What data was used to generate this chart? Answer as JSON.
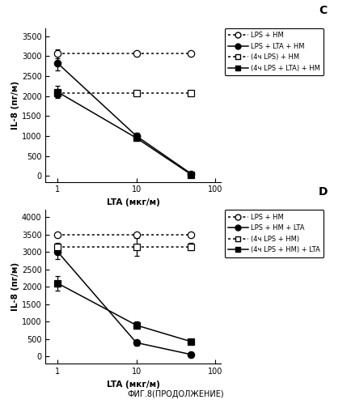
{
  "panel_C": {
    "title": "C",
    "xlabel": "LTA (мкг/м)",
    "ylabel": "IL-8 (пг/м)",
    "xlim": [
      0.7,
      120
    ],
    "ylim": [
      -150,
      3700
    ],
    "yticks": [
      0,
      500,
      1000,
      1500,
      2000,
      2500,
      3000,
      3500
    ],
    "xticks": [
      1,
      10,
      100
    ],
    "series": [
      {
        "label": "LPS + HM",
        "x": [
          1,
          10,
          50
        ],
        "y": [
          3060,
          3060,
          3060
        ],
        "yerr": [
          120,
          0,
          0
        ],
        "marker": "o",
        "markerfacecolor": "white",
        "markeredgecolor": "black",
        "linestyle": "dotted",
        "color": "black",
        "markersize": 6
      },
      {
        "label": "LPS + LTA + HM",
        "x": [
          1,
          10,
          50
        ],
        "y": [
          2820,
          1000,
          50
        ],
        "yerr": [
          180,
          80,
          20
        ],
        "marker": "o",
        "markerfacecolor": "black",
        "markeredgecolor": "black",
        "linestyle": "solid",
        "color": "black",
        "markersize": 6
      },
      {
        "label": "(4ч LPS) + HM",
        "x": [
          1,
          10,
          50
        ],
        "y": [
          2080,
          2080,
          2080
        ],
        "yerr": [
          100,
          0,
          0
        ],
        "marker": "s",
        "markerfacecolor": "white",
        "markeredgecolor": "black",
        "linestyle": "dotted",
        "color": "black",
        "markersize": 6
      },
      {
        "label": "(4ч LPS + LTA) + HM",
        "x": [
          1,
          10,
          50
        ],
        "y": [
          2100,
          950,
          30
        ],
        "yerr": [
          150,
          80,
          20
        ],
        "marker": "s",
        "markerfacecolor": "black",
        "markeredgecolor": "black",
        "linestyle": "solid",
        "color": "black",
        "markersize": 6
      }
    ]
  },
  "panel_D": {
    "title": "D",
    "xlabel": "LTA (мкг/м)",
    "ylabel": "IL-8 (пг/м)",
    "xlim": [
      0.7,
      120
    ],
    "ylim": [
      -200,
      4200
    ],
    "yticks": [
      0,
      500,
      1000,
      1500,
      2000,
      2500,
      3000,
      3500,
      4000
    ],
    "xticks": [
      1,
      10,
      100
    ],
    "series": [
      {
        "label": "LPS + HM",
        "x": [
          1,
          10,
          50
        ],
        "y": [
          3500,
          3500,
          3500
        ],
        "yerr": [
          0,
          0,
          0
        ],
        "marker": "o",
        "markerfacecolor": "white",
        "markeredgecolor": "black",
        "linestyle": "dotted",
        "color": "black",
        "markersize": 6
      },
      {
        "label": "LPS + HM + LTA",
        "x": [
          1,
          10,
          50
        ],
        "y": [
          3000,
          400,
          60
        ],
        "yerr": [
          200,
          80,
          25
        ],
        "marker": "o",
        "markerfacecolor": "black",
        "markeredgecolor": "black",
        "linestyle": "solid",
        "color": "black",
        "markersize": 6
      },
      {
        "label": "(4ч LPS + HM)",
        "x": [
          1,
          10,
          50
        ],
        "y": [
          3150,
          3150,
          3150
        ],
        "yerr": [
          100,
          250,
          100
        ],
        "marker": "s",
        "markerfacecolor": "white",
        "markeredgecolor": "black",
        "linestyle": "dotted",
        "color": "black",
        "markersize": 6
      },
      {
        "label": "(4ч LPS + HM) + LTA",
        "x": [
          1,
          10,
          50
        ],
        "y": [
          2100,
          900,
          430
        ],
        "yerr": [
          200,
          100,
          80
        ],
        "marker": "s",
        "markerfacecolor": "black",
        "markeredgecolor": "black",
        "linestyle": "solid",
        "color": "black",
        "markersize": 6
      }
    ]
  },
  "footnote": "ФИГ.8(ПРОДОЛЖЕНИЕ)"
}
